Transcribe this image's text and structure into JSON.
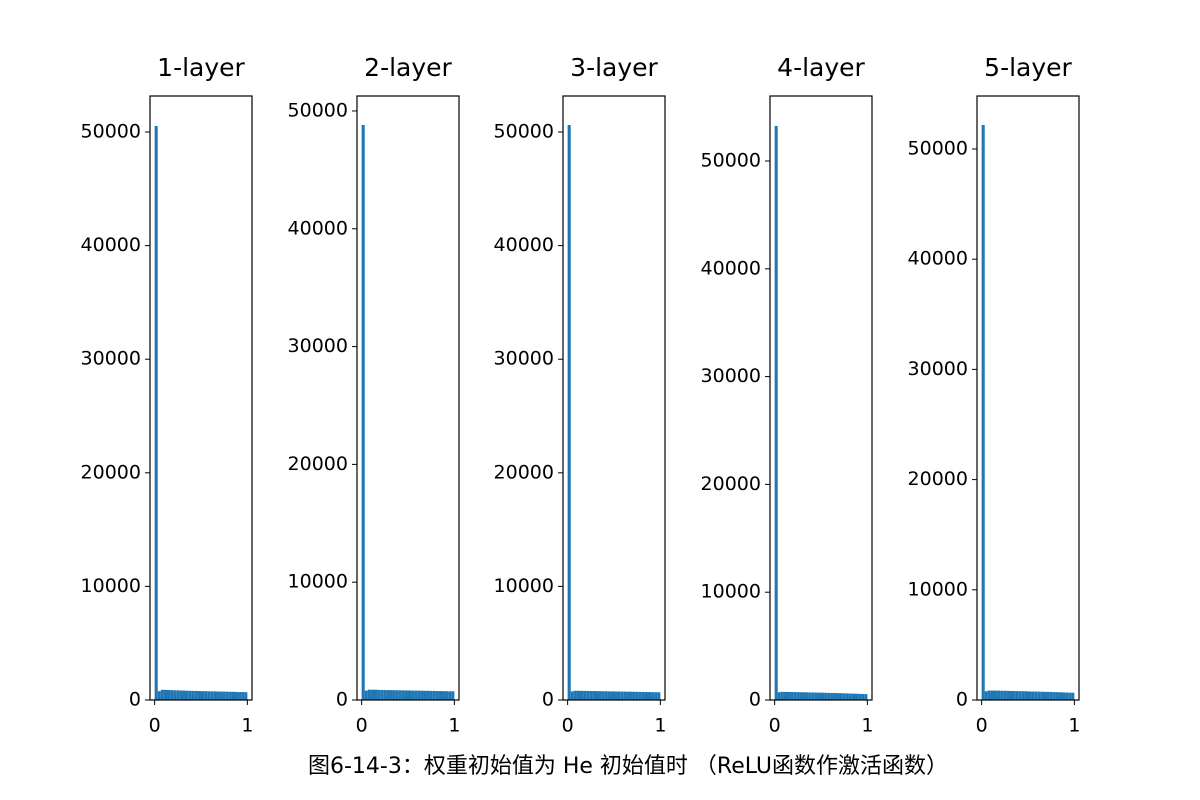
{
  "caption": "图6-14-3：权重初始值为 He 初始值时 （ReLU函数作激活函数）",
  "chart_data": [
    {
      "type": "histogram",
      "title": "1-layer",
      "color": "#1f77b4",
      "bins": [
        0,
        0.0333,
        0.0667,
        0.1,
        0.1333,
        0.1667,
        0.2,
        0.2333,
        0.2667,
        0.3,
        0.3333,
        0.3667,
        0.4,
        0.4333,
        0.4667,
        0.5,
        0.5333,
        0.5667,
        0.6,
        0.6333,
        0.6667,
        0.7,
        0.7333,
        0.7667,
        0.8,
        0.8333,
        0.8667,
        0.9,
        0.9333,
        0.9667,
        1
      ],
      "values": [
        50530,
        780,
        900,
        890,
        880,
        870,
        860,
        850,
        840,
        830,
        820,
        810,
        800,
        800,
        790,
        780,
        780,
        770,
        760,
        760,
        750,
        740,
        740,
        730,
        720,
        720,
        710,
        700,
        700,
        690
      ],
      "xlim": [
        -0.05,
        1.05
      ],
      "xticks": [
        0,
        1
      ],
      "ylim": [
        0,
        53170
      ],
      "yticks": [
        0,
        10000,
        20000,
        30000,
        40000,
        50000
      ]
    },
    {
      "type": "histogram",
      "title": "2-layer",
      "color": "#1f77b4",
      "bins": [
        0,
        0.0333,
        0.0667,
        0.1,
        0.1333,
        0.1667,
        0.2,
        0.2333,
        0.2667,
        0.3,
        0.3333,
        0.3667,
        0.4,
        0.4333,
        0.4667,
        0.5,
        0.5333,
        0.5667,
        0.6,
        0.6333,
        0.6667,
        0.7,
        0.7333,
        0.7667,
        0.8,
        0.8333,
        0.8667,
        0.9,
        0.9333,
        0.9667,
        1
      ],
      "values": [
        48810,
        800,
        880,
        870,
        870,
        860,
        850,
        850,
        840,
        840,
        830,
        830,
        820,
        820,
        810,
        810,
        800,
        800,
        790,
        790,
        780,
        780,
        770,
        770,
        760,
        760,
        750,
        750,
        740,
        740
      ],
      "xlim": [
        -0.05,
        1.05
      ],
      "xticks": [
        0,
        1
      ],
      "ylim": [
        0,
        51270
      ],
      "yticks": [
        0,
        10000,
        20000,
        30000,
        40000,
        50000
      ]
    },
    {
      "type": "histogram",
      "title": "3-layer",
      "color": "#1f77b4",
      "bins": [
        0,
        0.0333,
        0.0667,
        0.1,
        0.1333,
        0.1667,
        0.2,
        0.2333,
        0.2667,
        0.3,
        0.3333,
        0.3667,
        0.4,
        0.4333,
        0.4667,
        0.5,
        0.5333,
        0.5667,
        0.6,
        0.6333,
        0.6667,
        0.7,
        0.7333,
        0.7667,
        0.8,
        0.8333,
        0.8667,
        0.9,
        0.9333,
        0.9667,
        1
      ],
      "values": [
        50620,
        760,
        820,
        810,
        810,
        800,
        800,
        790,
        790,
        780,
        780,
        770,
        770,
        760,
        760,
        750,
        750,
        740,
        740,
        730,
        730,
        720,
        720,
        710,
        710,
        700,
        700,
        690,
        690,
        680
      ],
      "xlim": [
        -0.05,
        1.05
      ],
      "xticks": [
        0,
        1
      ],
      "ylim": [
        0,
        53170
      ],
      "yticks": [
        0,
        10000,
        20000,
        30000,
        40000,
        50000
      ]
    },
    {
      "type": "histogram",
      "title": "4-layer",
      "color": "#1f77b4",
      "bins": [
        0,
        0.0333,
        0.0667,
        0.1,
        0.1333,
        0.1667,
        0.2,
        0.2333,
        0.2667,
        0.3,
        0.3333,
        0.3667,
        0.4,
        0.4333,
        0.4667,
        0.5,
        0.5333,
        0.5667,
        0.6,
        0.6333,
        0.6667,
        0.7,
        0.7333,
        0.7667,
        0.8,
        0.8333,
        0.8667,
        0.9,
        0.9333,
        0.9667,
        1
      ],
      "values": [
        53250,
        720,
        760,
        750,
        750,
        740,
        740,
        730,
        720,
        720,
        710,
        700,
        700,
        690,
        680,
        680,
        670,
        660,
        650,
        650,
        640,
        630,
        620,
        610,
        600,
        590,
        580,
        570,
        560,
        550
      ],
      "xlim": [
        -0.05,
        1.05
      ],
      "xticks": [
        0,
        1
      ],
      "ylim": [
        0,
        56030
      ],
      "yticks": [
        0,
        10000,
        20000,
        30000,
        40000,
        50000
      ]
    },
    {
      "type": "histogram",
      "title": "5-layer",
      "color": "#1f77b4",
      "bins": [
        0,
        0.0333,
        0.0667,
        0.1,
        0.1333,
        0.1667,
        0.2,
        0.2333,
        0.2667,
        0.3,
        0.3333,
        0.3667,
        0.4,
        0.4333,
        0.4667,
        0.5,
        0.5333,
        0.5667,
        0.6,
        0.6333,
        0.6667,
        0.7,
        0.7333,
        0.7667,
        0.8,
        0.8333,
        0.8667,
        0.9,
        0.9333,
        0.9667,
        1
      ],
      "values": [
        52180,
        800,
        860,
        860,
        850,
        850,
        840,
        840,
        830,
        820,
        820,
        810,
        800,
        800,
        790,
        780,
        770,
        770,
        760,
        750,
        740,
        740,
        730,
        720,
        710,
        700,
        690,
        680,
        670,
        660
      ],
      "xlim": [
        -0.05,
        1.05
      ],
      "xticks": [
        0,
        1
      ],
      "ylim": [
        0,
        54810
      ],
      "yticks": [
        0,
        10000,
        20000,
        30000,
        40000,
        50000
      ]
    }
  ]
}
